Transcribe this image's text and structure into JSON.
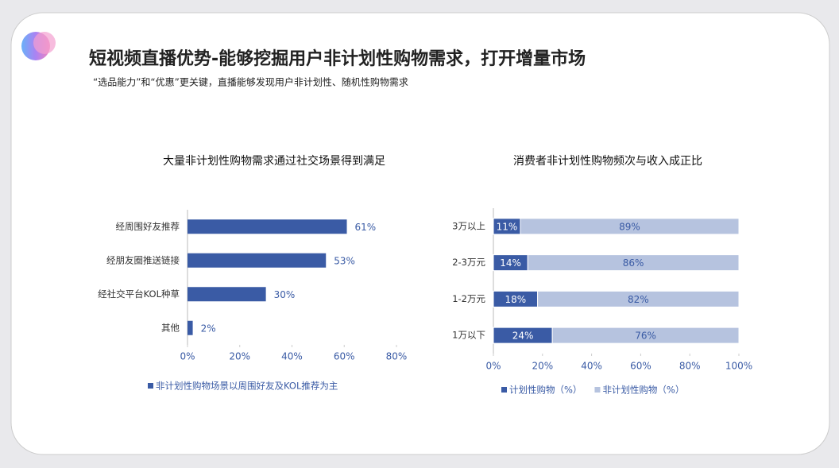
{
  "title": "短视频直播优势-能够挖掘用户非计划性购物需求，打开增量市场",
  "subtitle": "“选品能力”和“优惠”更关键，直播能够发现用户非计划性、随机性购物需求",
  "chart_data": [
    {
      "type": "bar",
      "orientation": "horizontal",
      "title": "大量非计划性购物需求通过社交场景得到满足",
      "categories": [
        "经周围好友推荐",
        "经朋友圈推送链接",
        "经社交平台KOL种草",
        "其他"
      ],
      "series": [
        {
          "name": "非计划性购物场景以周围好友及KOL推荐为主",
          "color": "#3a5ba5",
          "values": [
            61,
            53,
            30,
            2
          ],
          "value_labels": [
            "61%",
            "53%",
            "30%",
            "2%"
          ]
        }
      ],
      "xlim": [
        0,
        80
      ],
      "xticks": [
        {
          "value": 0,
          "label": "0%"
        },
        {
          "value": 20,
          "label": "20%"
        },
        {
          "value": 40,
          "label": "40%"
        },
        {
          "value": 60,
          "label": "60%"
        },
        {
          "value": 80,
          "label": "80%"
        }
      ]
    },
    {
      "type": "bar",
      "orientation": "horizontal",
      "stacked": true,
      "title": "消费者非计划性购物频次与收入成正比",
      "categories": [
        "3万以上",
        "2-3万元",
        "1-2万元",
        "1万以下"
      ],
      "series": [
        {
          "name": "计划性购物（%）",
          "color": "#3a5ba5",
          "values": [
            11,
            14,
            18,
            24
          ],
          "value_labels": [
            "11%",
            "14%",
            "18%",
            "24%"
          ]
        },
        {
          "name": "非计划性购物（%）",
          "color": "#b6c3df",
          "values": [
            89,
            86,
            82,
            76
          ],
          "value_labels": [
            "89%",
            "86%",
            "82%",
            "76%"
          ]
        }
      ],
      "xlim": [
        0,
        100
      ],
      "xticks": [
        {
          "value": 0,
          "label": "0%"
        },
        {
          "value": 20,
          "label": "20%"
        },
        {
          "value": 40,
          "label": "40%"
        },
        {
          "value": 60,
          "label": "60%"
        },
        {
          "value": 80,
          "label": "80%"
        },
        {
          "value": 100,
          "label": "100%"
        }
      ]
    }
  ]
}
